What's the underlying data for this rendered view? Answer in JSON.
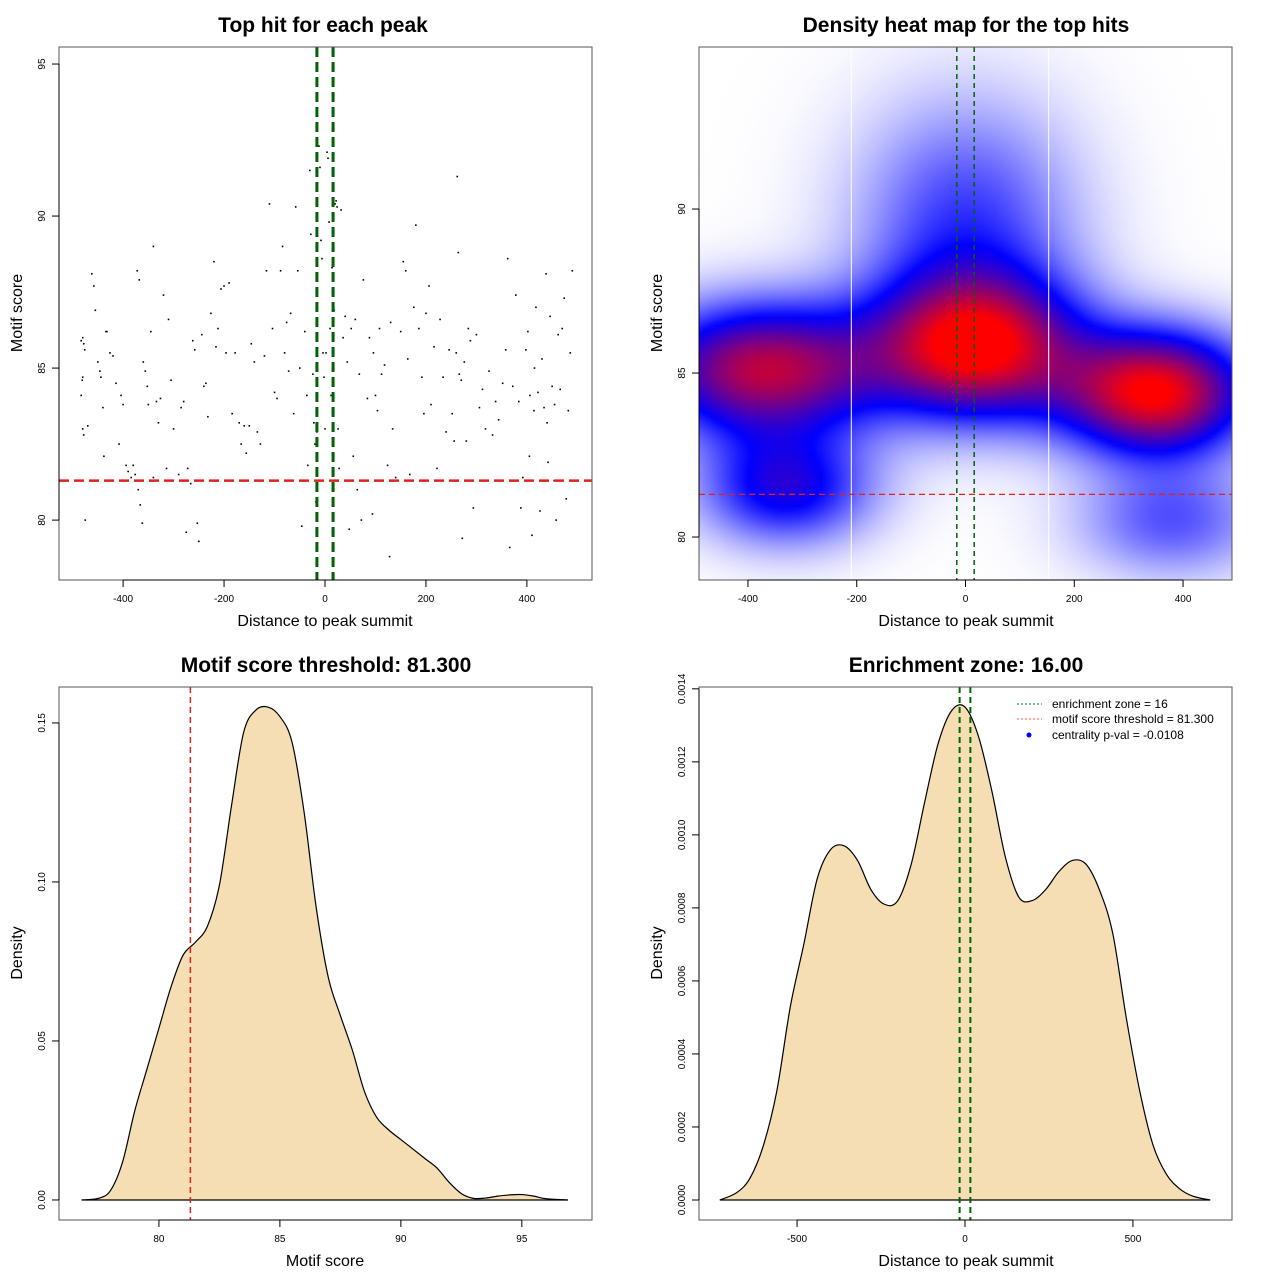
{
  "chart_data": [
    {
      "id": "scatter",
      "type": "scatter",
      "title": "Top hit for each peak",
      "xlabel": "Distance to peak summit",
      "ylabel": "Motif score",
      "xlim": [
        -527,
        529
      ],
      "ylim": [
        78.03,
        95.56
      ],
      "xticks": [
        -400,
        -200,
        0,
        200,
        400
      ],
      "yticks": [
        80,
        85,
        90,
        95
      ],
      "vlines": {
        "values": [
          -16,
          16
        ],
        "color": "#006400",
        "style": "dashed"
      },
      "hline": {
        "value": 81.3,
        "color": "#dd2222",
        "style": "dashed"
      },
      "points": [
        [
          -483,
          85.9
        ],
        [
          -480,
          86.0
        ],
        [
          -478,
          85.8
        ],
        [
          -476,
          85.6
        ],
        [
          -483,
          84.1
        ],
        [
          -481,
          84.6
        ],
        [
          -480,
          84.7
        ],
        [
          -480,
          83.0
        ],
        [
          -478,
          82.8
        ],
        [
          -470,
          83.1
        ],
        [
          -475,
          80.0
        ],
        [
          -462,
          88.1
        ],
        [
          -458,
          87.7
        ],
        [
          -455,
          86.9
        ],
        [
          -450,
          85.2
        ],
        [
          -446,
          84.9
        ],
        [
          -444,
          84.7
        ],
        [
          -440,
          83.7
        ],
        [
          -438,
          82.1
        ],
        [
          -434,
          86.2
        ],
        [
          -432,
          86.2
        ],
        [
          -426,
          85.5
        ],
        [
          -420,
          85.4
        ],
        [
          -414,
          84.5
        ],
        [
          -408,
          82.5
        ],
        [
          -404,
          84.1
        ],
        [
          -400,
          83.8
        ],
        [
          -394,
          81.8
        ],
        [
          -390,
          81.6
        ],
        [
          -384,
          81.4
        ],
        [
          -380,
          81.8
        ],
        [
          -376,
          81.5
        ],
        [
          -370,
          81.0
        ],
        [
          -366,
          80.5
        ],
        [
          -362,
          79.9
        ],
        [
          -372,
          88.2
        ],
        [
          -368,
          87.9
        ],
        [
          -360,
          85.2
        ],
        [
          -356,
          84.9
        ],
        [
          -352,
          84.4
        ],
        [
          -350,
          83.8
        ],
        [
          -345,
          86.2
        ],
        [
          -340,
          89.0
        ],
        [
          -340,
          81.4
        ],
        [
          -334,
          83.9
        ],
        [
          -330,
          83.2
        ],
        [
          -326,
          84.0
        ],
        [
          -320,
          87.4
        ],
        [
          -314,
          81.7
        ],
        [
          -310,
          86.6
        ],
        [
          -305,
          84.6
        ],
        [
          -300,
          83.0
        ],
        [
          -290,
          81.5
        ],
        [
          -285,
          83.7
        ],
        [
          -280,
          83.9
        ],
        [
          -275,
          79.6
        ],
        [
          -272,
          81.7
        ],
        [
          -266,
          81.2
        ],
        [
          -262,
          85.9
        ],
        [
          -258,
          85.6
        ],
        [
          -253,
          79.9
        ],
        [
          -250,
          79.3
        ],
        [
          -244,
          86.1
        ],
        [
          -240,
          84.4
        ],
        [
          -236,
          84.5
        ],
        [
          -232,
          83.4
        ],
        [
          -226,
          86.8
        ],
        [
          -220,
          88.5
        ],
        [
          -216,
          85.7
        ],
        [
          -212,
          86.3
        ],
        [
          -206,
          87.6
        ],
        [
          -200,
          87.7
        ],
        [
          -196,
          85.5
        ],
        [
          -190,
          87.8
        ],
        [
          -184,
          83.5
        ],
        [
          -178,
          85.5
        ],
        [
          -170,
          83.2
        ],
        [
          -166,
          82.5
        ],
        [
          -160,
          83.1
        ],
        [
          -156,
          82.2
        ],
        [
          -150,
          83.1
        ],
        [
          -146,
          85.8
        ],
        [
          -140,
          85.2
        ],
        [
          -134,
          82.9
        ],
        [
          -128,
          82.5
        ],
        [
          -120,
          85.4
        ],
        [
          -116,
          88.2
        ],
        [
          -110,
          90.4
        ],
        [
          -104,
          86.3
        ],
        [
          -100,
          84.2
        ],
        [
          -95,
          84.0
        ],
        [
          -88,
          88.2
        ],
        [
          -84,
          89.0
        ],
        [
          -80,
          85.5
        ],
        [
          -76,
          86.5
        ],
        [
          -72,
          84.9
        ],
        [
          -68,
          86.8
        ],
        [
          -62,
          83.5
        ],
        [
          -58,
          90.3
        ],
        [
          -54,
          88.2
        ],
        [
          -50,
          85.0
        ],
        [
          -46,
          79.8
        ],
        [
          -40,
          86.2
        ],
        [
          -36,
          84.1
        ],
        [
          -34,
          81.8
        ],
        [
          -30,
          91.5
        ],
        [
          -28,
          89.4
        ],
        [
          -24,
          84.8
        ],
        [
          -22,
          83.2
        ],
        [
          -20,
          82.5
        ],
        [
          -18,
          80.6
        ],
        [
          -16,
          82.9
        ],
        [
          -12,
          92.3
        ],
        [
          -10,
          91.6
        ],
        [
          -8,
          89.2
        ],
        [
          -6,
          88.6
        ],
        [
          -4,
          85.5
        ],
        [
          -2,
          84.7
        ],
        [
          0,
          83.0
        ],
        [
          2,
          85.5
        ],
        [
          4,
          92.1
        ],
        [
          6,
          91.9
        ],
        [
          8,
          89.8
        ],
        [
          10,
          86.3
        ],
        [
          12,
          84.1
        ],
        [
          14,
          88.3
        ],
        [
          16,
          87.4
        ],
        [
          18,
          86.9
        ],
        [
          20,
          90.4
        ],
        [
          22,
          90.5
        ],
        [
          24,
          90.3
        ],
        [
          26,
          83.0
        ],
        [
          28,
          81.7
        ],
        [
          32,
          90.2
        ],
        [
          36,
          86.0
        ],
        [
          40,
          86.7
        ],
        [
          44,
          85.2
        ],
        [
          48,
          79.7
        ],
        [
          52,
          86.3
        ],
        [
          56,
          82.1
        ],
        [
          60,
          86.6
        ],
        [
          64,
          81.0
        ],
        [
          68,
          84.8
        ],
        [
          72,
          80.0
        ],
        [
          76,
          87.9
        ],
        [
          84,
          84.0
        ],
        [
          88,
          86.0
        ],
        [
          94,
          80.2
        ],
        [
          96,
          85.5
        ],
        [
          100,
          84.1
        ],
        [
          104,
          83.6
        ],
        [
          108,
          86.3
        ],
        [
          112,
          84.8
        ],
        [
          118,
          85.1
        ],
        [
          124,
          81.8
        ],
        [
          128,
          78.8
        ],
        [
          130,
          86.5
        ],
        [
          134,
          83.0
        ],
        [
          140,
          81.4
        ],
        [
          150,
          86.2
        ],
        [
          155,
          88.5
        ],
        [
          160,
          88.2
        ],
        [
          164,
          85.3
        ],
        [
          168,
          81.5
        ],
        [
          176,
          87.0
        ],
        [
          180,
          89.7
        ],
        [
          186,
          86.3
        ],
        [
          192,
          84.7
        ],
        [
          196,
          83.5
        ],
        [
          200,
          86.8
        ],
        [
          206,
          87.7
        ],
        [
          210,
          83.8
        ],
        [
          216,
          85.7
        ],
        [
          222,
          81.7
        ],
        [
          228,
          86.6
        ],
        [
          234,
          84.7
        ],
        [
          240,
          82.9
        ],
        [
          246,
          85.6
        ],
        [
          252,
          83.5
        ],
        [
          256,
          82.6
        ],
        [
          260,
          85.5
        ],
        [
          262,
          91.3
        ],
        [
          264,
          88.8
        ],
        [
          266,
          84.8
        ],
        [
          270,
          84.6
        ],
        [
          272,
          79.4
        ],
        [
          276,
          85.2
        ],
        [
          280,
          82.6
        ],
        [
          284,
          86.3
        ],
        [
          288,
          85.9
        ],
        [
          294,
          80.4
        ],
        [
          300,
          86.1
        ],
        [
          306,
          83.7
        ],
        [
          312,
          84.3
        ],
        [
          318,
          83.0
        ],
        [
          325,
          84.9
        ],
        [
          332,
          82.8
        ],
        [
          338,
          83.9
        ],
        [
          344,
          83.3
        ],
        [
          352,
          84.5
        ],
        [
          358,
          85.6
        ],
        [
          362,
          88.6
        ],
        [
          366,
          79.1
        ],
        [
          372,
          84.4
        ],
        [
          378,
          87.4
        ],
        [
          384,
          83.9
        ],
        [
          388,
          80.4
        ],
        [
          392,
          81.4
        ],
        [
          398,
          85.6
        ],
        [
          402,
          86.2
        ],
        [
          406,
          84.1
        ],
        [
          410,
          79.5
        ],
        [
          414,
          83.6
        ],
        [
          418,
          87.0
        ],
        [
          422,
          84.2
        ],
        [
          426,
          80.3
        ],
        [
          430,
          85.3
        ],
        [
          434,
          83.7
        ],
        [
          438,
          88.1
        ],
        [
          442,
          81.9
        ],
        [
          446,
          86.7
        ],
        [
          450,
          84.4
        ],
        [
          454,
          81.3
        ],
        [
          458,
          80.0
        ],
        [
          462,
          86.1
        ],
        [
          466,
          84.3
        ],
        [
          470,
          86.3
        ],
        [
          474,
          87.3
        ],
        [
          478,
          80.7
        ],
        [
          482,
          83.6
        ],
        [
          486,
          85.5
        ],
        [
          490,
          88.2
        ],
        [
          440,
          83.2
        ],
        [
          405,
          82.1
        ],
        [
          415,
          85.0
        ],
        [
          455,
          83.8
        ]
      ]
    },
    {
      "id": "heatmap",
      "type": "heatmap",
      "title": "Density heat map for the top hits",
      "xlabel": "Distance to peak summit",
      "ylabel": "Motif score",
      "xlim": [
        -490,
        490
      ],
      "ylim": [
        78.69,
        94.94
      ],
      "xticks": [
        -400,
        -200,
        0,
        200,
        400
      ],
      "yticks": [
        80,
        85,
        90
      ],
      "colorscale": [
        "#ffffff",
        "#0000ff",
        "#ff0000"
      ],
      "density_peaks": [
        {
          "x": -370,
          "y": 85.1,
          "intensity": 0.85
        },
        {
          "x": 20,
          "y": 85.8,
          "intensity": 0.95
        },
        {
          "x": 350,
          "y": 84.4,
          "intensity": 1.0
        },
        {
          "x": -330,
          "y": 81.5,
          "intensity": 0.5
        },
        {
          "x": 0,
          "y": 89.5,
          "intensity": 0.35
        },
        {
          "x": 380,
          "y": 80.5,
          "intensity": 0.3
        }
      ],
      "white_vlines": [
        -210,
        153
      ],
      "vlines": {
        "values": [
          -16,
          16
        ],
        "color": "#006400",
        "style": "dashed"
      },
      "hline": {
        "value": 81.3,
        "color": "#dd2222",
        "style": "dashed"
      }
    },
    {
      "id": "score-density",
      "type": "area",
      "title": "Motif score threshold: 81.300",
      "xlabel": "Motif score",
      "ylabel": "Density",
      "xlim": [
        75.87,
        97.9
      ],
      "ylim": [
        -0.0063,
        0.1613
      ],
      "xticks": [
        80,
        85,
        90,
        95
      ],
      "yticks": [
        0.0,
        0.05,
        0.1,
        0.15
      ],
      "ytick_labels": [
        "0.00",
        "0.05",
        "0.10",
        "0.15"
      ],
      "fill": "#f5deb3",
      "vline": {
        "value": 81.3,
        "color": "#dd2222",
        "style": "dashed"
      },
      "x": [
        76.8,
        77.5,
        78.0,
        78.5,
        79.0,
        79.5,
        80.0,
        80.5,
        81.0,
        81.5,
        82.0,
        82.5,
        83.0,
        83.5,
        84.0,
        84.5,
        85.0,
        85.5,
        86.0,
        86.5,
        87.0,
        87.5,
        88.0,
        88.5,
        89.0,
        89.5,
        90.0,
        90.5,
        91.0,
        91.5,
        92.0,
        92.5,
        93.0,
        93.5,
        94.0,
        94.5,
        95.0,
        95.5,
        96.0,
        96.9
      ],
      "y": [
        0.0,
        0.0005,
        0.003,
        0.012,
        0.028,
        0.041,
        0.054,
        0.067,
        0.077,
        0.081,
        0.086,
        0.099,
        0.124,
        0.147,
        0.154,
        0.155,
        0.152,
        0.144,
        0.122,
        0.092,
        0.07,
        0.058,
        0.047,
        0.034,
        0.026,
        0.022,
        0.019,
        0.016,
        0.013,
        0.01,
        0.0055,
        0.002,
        0.0005,
        0.0006,
        0.0012,
        0.0016,
        0.0017,
        0.0012,
        0.0004,
        0.0
      ]
    },
    {
      "id": "position-density",
      "type": "area",
      "title": "Enrichment zone: 16.00",
      "xlabel": "Distance to peak summit",
      "ylabel": "Density",
      "xlim": [
        -792,
        795
      ],
      "ylim": [
        -5.48e-05,
        0.001405
      ],
      "xticks": [
        -500,
        0,
        500
      ],
      "yticks": [
        0.0,
        0.0002,
        0.0004,
        0.0006,
        0.0008,
        0.001,
        0.0012,
        0.0014
      ],
      "ytick_labels": [
        "0.0000",
        "0.0002",
        "0.0004",
        "0.0006",
        "0.0008",
        "0.0010",
        "0.0012",
        "0.0014"
      ],
      "fill": "#f5deb3",
      "vlines": {
        "values": [
          -16,
          16
        ],
        "color": "#006400",
        "style": "dashed"
      },
      "x": [
        -730,
        -680,
        -640,
        -600,
        -560,
        -520,
        -480,
        -440,
        -400,
        -360,
        -320,
        -280,
        -240,
        -200,
        -160,
        -120,
        -80,
        -40,
        0,
        40,
        80,
        120,
        160,
        200,
        240,
        280,
        320,
        360,
        400,
        440,
        480,
        520,
        560,
        600,
        640,
        680,
        730
      ],
      "y": [
        0.0,
        2e-05,
        6e-05,
        0.00015,
        0.0003,
        0.00053,
        0.0007,
        0.00088,
        0.00096,
        0.00097,
        0.00093,
        0.00085,
        0.00081,
        0.00082,
        0.00092,
        0.00109,
        0.00125,
        0.00134,
        0.00135,
        0.00127,
        0.00112,
        0.00094,
        0.00083,
        0.00082,
        0.00085,
        0.0009,
        0.00093,
        0.00092,
        0.00085,
        0.00073,
        0.0005,
        0.0003,
        0.00015,
        7e-05,
        3e-05,
        1e-05,
        0.0
      ],
      "legend": {
        "placement": "top-right",
        "items": [
          {
            "label": "enrichment zone = 16",
            "color": "#006400",
            "kind": "dotted-line"
          },
          {
            "label": "motif score threshold = 81.300",
            "color": "#ff5555",
            "kind": "dotted-line"
          },
          {
            "label": "centrality p-val = -0.0108",
            "color": "#0000ff",
            "kind": "point"
          }
        ]
      }
    }
  ]
}
